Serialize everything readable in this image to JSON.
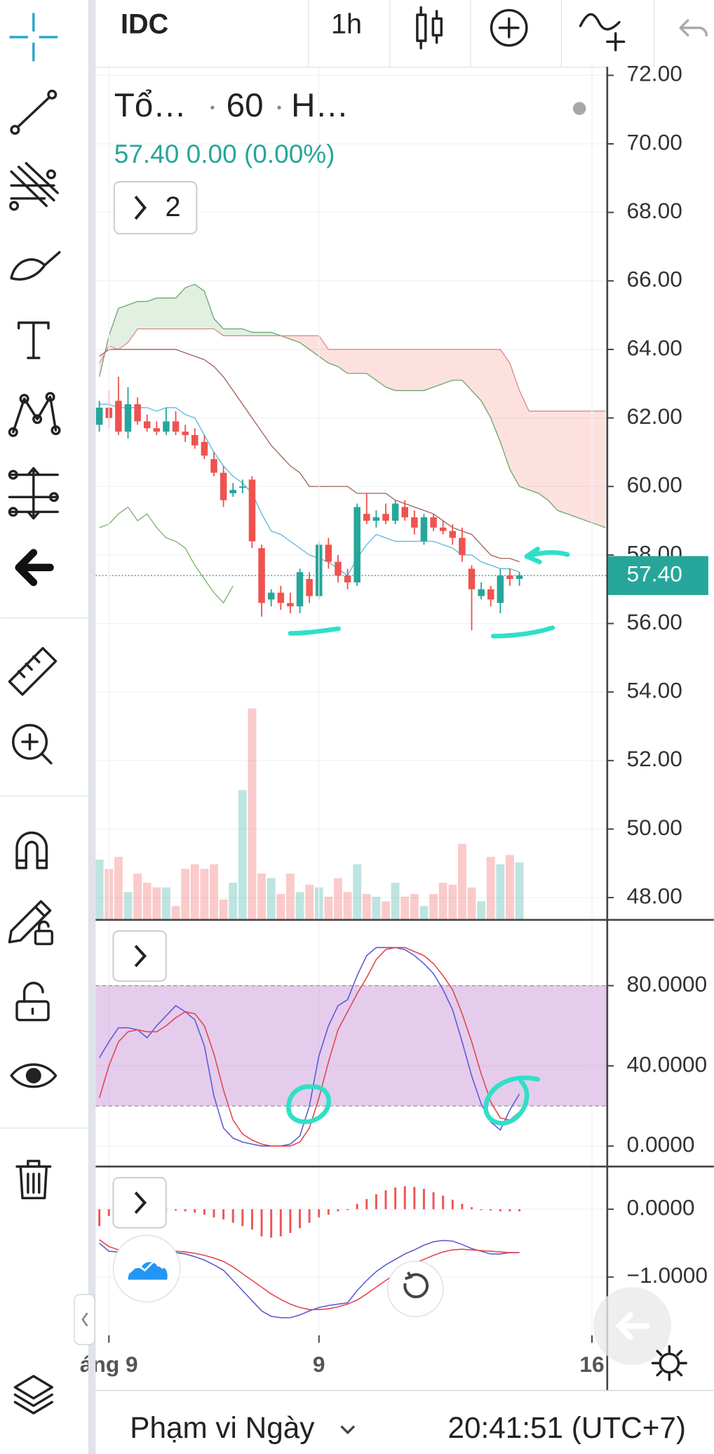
{
  "toolbar": {
    "symbol": "IDC",
    "interval": "1h"
  },
  "legend": {
    "name": "Tổ…",
    "interval": "60",
    "exchange": "H…",
    "quote": "57.40 0.00 (0.00%)",
    "badge": "2"
  },
  "bottom_bar": {
    "range": "Phạm vi Ngày",
    "clock": "20:41:51 (UTC+7)"
  },
  "chart_data": [
    {
      "type": "candlestick",
      "xlim": [
        -0.39,
        53.2
      ],
      "ylim": [
        47.35,
        72.25
      ],
      "grid": true,
      "xticks": [
        {
          "value": 1,
          "label": "áng 9"
        },
        {
          "value": 23,
          "label": "9"
        },
        {
          "value": 51.6,
          "label": "16"
        }
      ],
      "yticks": [
        {
          "value": 72,
          "label": "72.00"
        },
        {
          "value": 70,
          "label": "70.00"
        },
        {
          "value": 68,
          "label": "68.00"
        },
        {
          "value": 66,
          "label": "66.00"
        },
        {
          "value": 64,
          "label": "64.00"
        },
        {
          "value": 62,
          "label": "62.00"
        },
        {
          "value": 60,
          "label": "60.00"
        },
        {
          "value": 58,
          "label": "58.00"
        },
        {
          "value": 56,
          "label": "56.00"
        },
        {
          "value": 54,
          "label": "54.00"
        },
        {
          "value": 52,
          "label": "52.00"
        },
        {
          "value": 50,
          "label": "50.00"
        },
        {
          "value": 48,
          "label": "48.00"
        }
      ],
      "last_price": {
        "value": 57.4,
        "label": "57.40"
      },
      "colors": {
        "up": "#26a69a",
        "down": "#ef5350",
        "tenkan": "#5bb8dc",
        "kijun": "#a0605a",
        "chikou": "#7cb36a",
        "span_a": "#6aa86a",
        "span_b": "#d98a8a",
        "cloud_up": "#43a047",
        "cloud_down": "#f44336",
        "last_price": "#26a69a"
      },
      "open": [
        61.8,
        62.3,
        62.5,
        61.6,
        62.4,
        61.9,
        61.7,
        61.6,
        61.9,
        61.6,
        61.5,
        61.3,
        60.8,
        60.4,
        59.8,
        60.0,
        60.2,
        58.2,
        56.7,
        56.9,
        56.6,
        56.5,
        57.3,
        56.8,
        58.3,
        57.8,
        57.4,
        57.2,
        59.2,
        59.0,
        59.2,
        59.0,
        59.4,
        59.1,
        58.4,
        59.1,
        58.8,
        58.7,
        58.5,
        57.6,
        56.8,
        57.0,
        56.6,
        57.4,
        57.3
      ],
      "high": [
        62.5,
        62.8,
        63.2,
        62.9,
        62.6,
        62.1,
        61.9,
        62.3,
        62.2,
        61.8,
        61.7,
        61.5,
        61.0,
        60.6,
        60.1,
        60.2,
        60.3,
        58.3,
        57.0,
        57.1,
        56.9,
        57.6,
        57.5,
        58.4,
        58.5,
        58.0,
        57.6,
        59.5,
        59.8,
        59.3,
        59.5,
        59.6,
        59.6,
        59.3,
        59.2,
        59.2,
        59.0,
        58.9,
        58.8,
        57.7,
        57.2,
        57.1,
        57.6,
        57.6,
        57.5
      ],
      "low": [
        61.6,
        61.7,
        61.5,
        61.4,
        61.8,
        61.6,
        61.5,
        61.5,
        61.5,
        61.3,
        61.1,
        60.8,
        60.3,
        59.4,
        59.7,
        59.8,
        58.2,
        56.2,
        56.5,
        56.4,
        56.3,
        56.3,
        56.6,
        56.7,
        57.6,
        57.2,
        57.0,
        57.1,
        58.9,
        58.8,
        58.9,
        58.9,
        59.0,
        58.6,
        58.3,
        58.7,
        58.6,
        58.3,
        57.8,
        55.8,
        56.7,
        56.5,
        56.3,
        57.1,
        57.1
      ],
      "close": [
        62.3,
        62.0,
        61.6,
        62.4,
        61.9,
        61.7,
        61.6,
        61.9,
        61.6,
        61.5,
        61.2,
        60.9,
        60.4,
        59.6,
        59.9,
        60.0,
        58.4,
        56.6,
        56.9,
        56.6,
        56.5,
        57.5,
        56.8,
        58.3,
        57.8,
        57.4,
        57.2,
        59.4,
        59.0,
        59.1,
        59.0,
        59.5,
        59.1,
        58.8,
        59.1,
        58.8,
        58.7,
        58.5,
        58.0,
        57.0,
        57.0,
        56.7,
        57.4,
        57.3,
        57.4
      ],
      "volume_lim": [
        0,
        920
      ],
      "volume": [
        65,
        55,
        68,
        30,
        50,
        40,
        35,
        35,
        15,
        55,
        60,
        55,
        60,
        22,
        40,
        140,
        228,
        50,
        45,
        28,
        50,
        30,
        38,
        35,
        25,
        45,
        30,
        60,
        28,
        25,
        20,
        40,
        25,
        28,
        15,
        28,
        40,
        38,
        82,
        35,
        20,
        68,
        60,
        70,
        62
      ],
      "tenkan": [
        62.4,
        62.4,
        62.3,
        62.3,
        62.3,
        62.3,
        62.2,
        62.3,
        62.3,
        62.1,
        62.0,
        61.5,
        61.0,
        60.6,
        60.3,
        60.1,
        59.8,
        59.2,
        58.7,
        58.6,
        58.4,
        58.2,
        58.0,
        57.9,
        57.8,
        57.6,
        57.4,
        57.9,
        58.3,
        58.6,
        58.5,
        58.4,
        58.4,
        58.4,
        58.4,
        58.4,
        58.3,
        58.2,
        58.0,
        58.0,
        57.8,
        57.7,
        57.6,
        57.6,
        57.5
      ],
      "kijun": [
        63.8,
        64.0,
        64.0,
        64.0,
        64.0,
        64.0,
        64.0,
        64.0,
        64.0,
        63.9,
        63.8,
        63.7,
        63.5,
        63.2,
        62.8,
        62.4,
        62.0,
        61.6,
        61.2,
        60.9,
        60.6,
        60.4,
        60.0,
        60.0,
        60.0,
        60.0,
        60.0,
        59.8,
        59.8,
        59.8,
        59.8,
        59.6,
        59.5,
        59.4,
        59.3,
        59.2,
        59.0,
        58.8,
        58.7,
        58.6,
        58.3,
        58.0,
        57.9,
        57.9,
        57.8
      ],
      "chikou": [
        58.8,
        58.9,
        59.2,
        59.4,
        59.0,
        59.2,
        58.8,
        58.5,
        58.4,
        58.2,
        57.7,
        57.3,
        56.9,
        56.6,
        57.1
      ],
      "span_a": [
        63.2,
        64.4,
        65.2,
        65.3,
        65.4,
        65.4,
        65.5,
        65.5,
        65.5,
        65.8,
        65.9,
        65.7,
        64.9,
        64.6,
        64.6,
        64.6,
        64.5,
        64.5,
        64.5,
        64.4,
        64.3,
        64.2,
        64.0,
        63.8,
        63.6,
        63.5,
        63.3,
        63.3,
        63.3,
        63.1,
        62.9,
        62.8,
        62.8,
        62.8,
        62.8,
        62.9,
        63.0,
        63.1,
        63.1,
        62.8,
        62.5,
        62.0,
        61.3,
        60.5,
        60.0,
        59.9,
        59.8,
        59.6,
        59.3,
        59.2,
        59.1,
        59.0,
        58.9,
        58.8
      ],
      "span_b": [
        63.6,
        64.1,
        64.0,
        64.2,
        64.6,
        64.6,
        64.6,
        64.6,
        64.6,
        64.6,
        64.6,
        64.6,
        64.6,
        64.4,
        64.4,
        64.4,
        64.4,
        64.4,
        64.4,
        64.4,
        64.4,
        64.4,
        64.4,
        64.4,
        64.0,
        64.0,
        64.0,
        64.0,
        64.0,
        64.0,
        64.0,
        64.0,
        64.0,
        64.0,
        64.0,
        64.0,
        64.0,
        64.0,
        64.0,
        64.0,
        64.0,
        64.0,
        64.0,
        63.6,
        62.8,
        62.2,
        62.2,
        62.2,
        62.2,
        62.2,
        62.2,
        62.2,
        62.2,
        62.2
      ]
    },
    {
      "type": "line",
      "xlim": [
        -0.39,
        53.2
      ],
      "ylim": [
        -10.2,
        112.8
      ],
      "grid": true,
      "yticks": [
        {
          "value": 80,
          "label": "80.0000"
        },
        {
          "value": 40,
          "label": "40.0000"
        },
        {
          "value": 0,
          "label": "0.0000"
        }
      ],
      "band": [
        20,
        80
      ],
      "band_color": "#c58ed6",
      "series": [
        {
          "color": "#5b5bd6",
          "values": [
            44,
            52,
            59,
            59,
            58,
            54,
            60,
            65,
            70,
            67,
            63,
            50,
            25,
            9,
            4,
            2,
            1,
            0,
            0,
            0,
            1,
            5,
            20,
            45,
            60,
            70,
            73,
            85,
            95,
            99,
            99,
            99,
            98,
            95,
            91,
            86,
            78,
            68,
            52,
            35,
            21,
            12,
            8,
            18,
            26
          ]
        },
        {
          "color": "#e0474c",
          "values": [
            24,
            40,
            52,
            57,
            58,
            57,
            57,
            60,
            64,
            67,
            66,
            60,
            46,
            28,
            13,
            6,
            3,
            1,
            0,
            0,
            0,
            2,
            9,
            24,
            42,
            58,
            67,
            76,
            84,
            93,
            98,
            99,
            99,
            97,
            95,
            91,
            85,
            78,
            66,
            52,
            36,
            22,
            14,
            13,
            17
          ]
        }
      ]
    },
    {
      "type": "macd",
      "xlim": [
        -0.39,
        53.2
      ],
      "ylim": [
        -1.86,
        0.63
      ],
      "grid": true,
      "yticks": [
        {
          "value": 0,
          "label": "0.0000"
        },
        {
          "value": -1,
          "label": "−1.0000"
        }
      ],
      "histogram_color": "#ef5350",
      "histogram": [
        -0.25,
        -0.1,
        -0.05,
        0,
        0,
        -0.02,
        -0.02,
        0,
        -0.02,
        -0.03,
        -0.05,
        -0.08,
        -0.12,
        -0.15,
        -0.2,
        -0.25,
        -0.3,
        -0.4,
        -0.42,
        -0.4,
        -0.35,
        -0.28,
        -0.2,
        -0.12,
        -0.08,
        -0.03,
        0,
        0.08,
        0.15,
        0.22,
        0.28,
        0.32,
        0.34,
        0.33,
        0.3,
        0.25,
        0.2,
        0.14,
        0.08,
        0.03,
        0,
        -0.02,
        -0.03,
        -0.03,
        -0.03
      ],
      "series": [
        {
          "color": "#5b5bd6",
          "values": [
            -0.5,
            -0.62,
            -0.63,
            -0.63,
            -0.62,
            -0.62,
            -0.63,
            -0.63,
            -0.64,
            -0.66,
            -0.7,
            -0.75,
            -0.82,
            -0.9,
            -1.05,
            -1.2,
            -1.35,
            -1.5,
            -1.58,
            -1.6,
            -1.6,
            -1.56,
            -1.5,
            -1.45,
            -1.42,
            -1.4,
            -1.38,
            -1.2,
            -1.05,
            -0.92,
            -0.82,
            -0.74,
            -0.66,
            -0.6,
            -0.53,
            -0.48,
            -0.46,
            -0.47,
            -0.52,
            -0.58,
            -0.62,
            -0.66,
            -0.66,
            -0.64,
            -0.64
          ]
        },
        {
          "color": "#e0474c",
          "values": [
            -0.45,
            -0.55,
            -0.6,
            -0.62,
            -0.62,
            -0.62,
            -0.62,
            -0.62,
            -0.62,
            -0.63,
            -0.65,
            -0.68,
            -0.72,
            -0.77,
            -0.85,
            -0.95,
            -1.05,
            -1.15,
            -1.25,
            -1.33,
            -1.4,
            -1.45,
            -1.48,
            -1.48,
            -1.47,
            -1.44,
            -1.4,
            -1.34,
            -1.25,
            -1.15,
            -1.05,
            -0.96,
            -0.88,
            -0.8,
            -0.74,
            -0.68,
            -0.63,
            -0.6,
            -0.59,
            -0.6,
            -0.61,
            -0.62,
            -0.63,
            -0.64,
            -0.64
          ]
        }
      ]
    }
  ]
}
